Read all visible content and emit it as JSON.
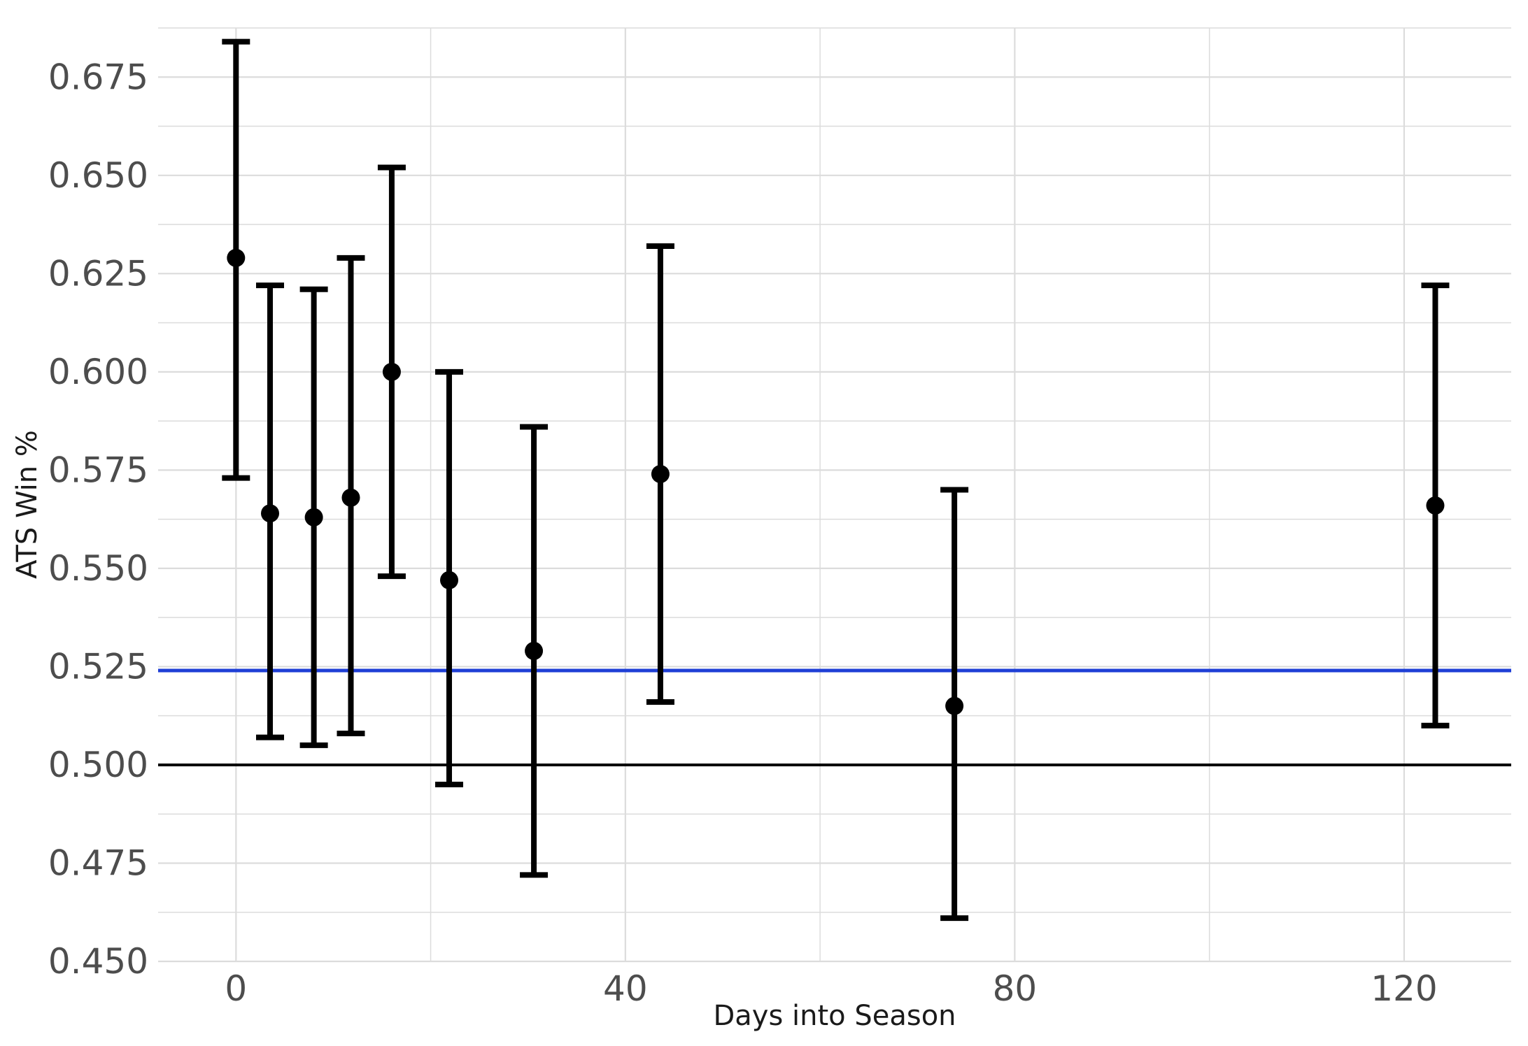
{
  "chart_data": {
    "type": "scatter",
    "title": "",
    "xlabel": "Days into Season",
    "ylabel": "ATS Win %",
    "xlim": [
      -8,
      131
    ],
    "ylim": [
      0.45,
      0.6875
    ],
    "x_ticks": [
      0,
      40,
      80,
      120
    ],
    "x_tick_labels": [
      "0",
      "40",
      "80",
      "120"
    ],
    "y_ticks": [
      0.45,
      0.475,
      0.5,
      0.525,
      0.55,
      0.575,
      0.6,
      0.625,
      0.65,
      0.675
    ],
    "y_tick_labels": [
      "0.450",
      "0.475",
      "0.500",
      "0.525",
      "0.550",
      "0.575",
      "0.600",
      "0.625",
      "0.650",
      "0.675"
    ],
    "grid": true,
    "series": [
      {
        "x": [
          0,
          3.5,
          8,
          11.8,
          16,
          21.9,
          30.6,
          43.6,
          73.8,
          123.2
        ],
        "y": [
          0.629,
          0.564,
          0.563,
          0.568,
          0.6,
          0.547,
          0.529,
          0.574,
          0.515,
          0.566
        ],
        "y_lower": [
          0.573,
          0.507,
          0.505,
          0.508,
          0.548,
          0.495,
          0.472,
          0.516,
          0.461,
          0.51
        ],
        "y_upper": [
          0.684,
          0.622,
          0.621,
          0.629,
          0.652,
          0.6,
          0.586,
          0.632,
          0.57,
          0.622
        ]
      }
    ],
    "reference_lines": [
      {
        "axis": "y",
        "value": 0.5,
        "color": "#000000"
      },
      {
        "axis": "y",
        "value": 0.524,
        "color": "#1f3fd6"
      }
    ],
    "colors": {
      "points": "#000000",
      "grid": "#dcdcdc",
      "breakeven_line": "#1f3fd6",
      "baseline": "#000000"
    }
  }
}
